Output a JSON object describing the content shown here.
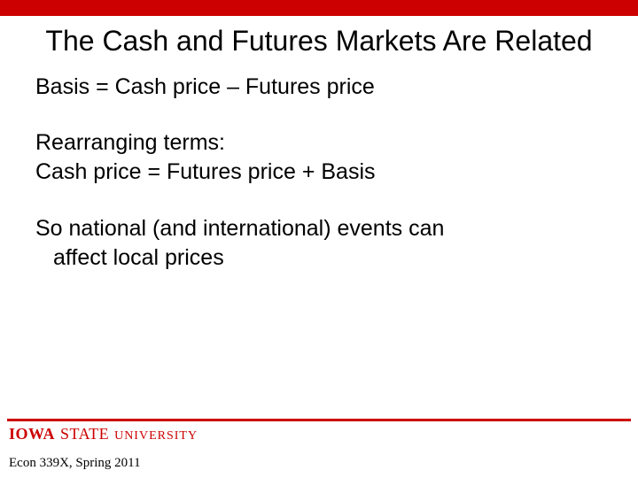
{
  "colors": {
    "accent": "#cc0000",
    "background": "#ffffff",
    "text": "#000000"
  },
  "slide": {
    "title": "The Cash and Futures Markets Are Related",
    "lines": {
      "l1": "Basis = Cash price – Futures price",
      "l2": "Rearranging terms:",
      "l3": "Cash price = Futures price + Basis",
      "l4": "So national (and international) events can",
      "l5": "affect local prices"
    }
  },
  "footer": {
    "logo_iowa": "IOWA",
    "logo_state": "STATE",
    "logo_university": "UNIVERSITY",
    "course": "Econ 339X, Spring 2011"
  }
}
